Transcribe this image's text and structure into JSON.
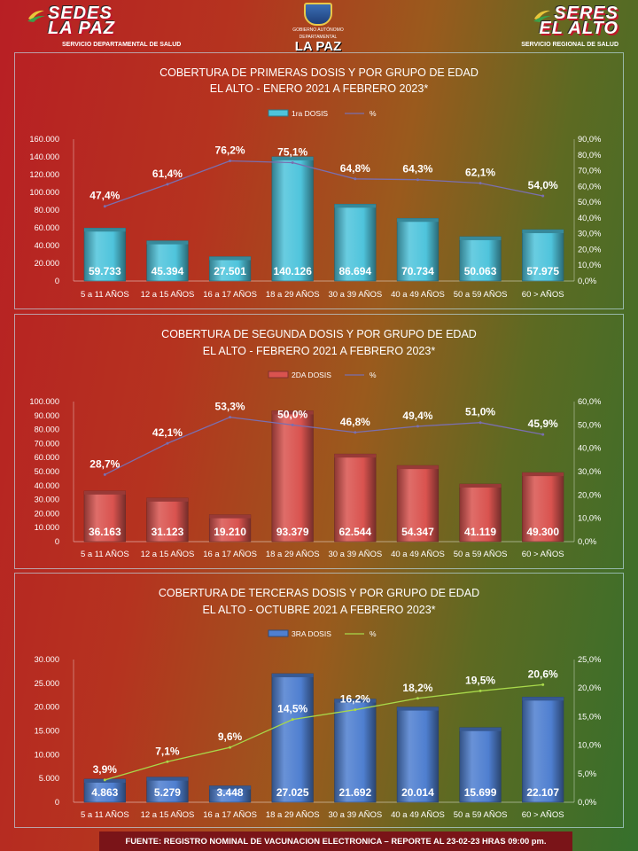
{
  "header": {
    "left_logo": {
      "line1": "SEDES",
      "line2": "LA PAZ",
      "tagline": "SERVICIO DEPARTAMENTAL DE SALUD"
    },
    "center_logo": {
      "line1": "GOBIERNO AUTÓNOMO",
      "line2": "DEPARTAMENTAL",
      "name": "LA PAZ"
    },
    "right_logo": {
      "line1": "SERES",
      "line2": "EL ALTO",
      "tagline": "SERVICIO REGIONAL DE SALUD"
    }
  },
  "footer": {
    "text": "FUENTE: REGISTRO NOMINAL DE VACUNACION ELECTRONICA – REPORTE AL 23-02-23 HRAS 09:00 pm."
  },
  "chart_data": [
    {
      "type": "bar",
      "title": "COBERTURA DE PRIMERAS DOSIS Y POR GRUPO DE EDAD",
      "subtitle": "EL ALTO - ENERO 2021 A FEBRERO 2023*",
      "categories": [
        "5 a 11 AÑOS",
        "12 a 15 AÑOS",
        "16 a 17 AÑOS",
        "18 a 29 AÑOS",
        "30 a 39 AÑOS",
        "40 a 49 AÑOS",
        "50 a 59 AÑOS",
        "60 > AÑOS"
      ],
      "series": [
        {
          "name": "1ra DOSIS",
          "type": "bar",
          "axis": "left",
          "color": "#4fc4dc",
          "values": [
            59733,
            45394,
            27501,
            140126,
            86694,
            70734,
            50063,
            57975
          ],
          "labels": [
            "59.733",
            "45.394",
            "27.501",
            "140.126",
            "86.694",
            "70.734",
            "50.063",
            "57.975"
          ]
        },
        {
          "name": "%",
          "type": "line",
          "axis": "right",
          "color": "#7a6fb0",
          "values": [
            47.4,
            61.4,
            76.2,
            75.1,
            64.8,
            64.3,
            62.1,
            54.0
          ],
          "labels": [
            "47,4%",
            "61,4%",
            "76,2%",
            "75,1%",
            "64,8%",
            "64,3%",
            "62,1%",
            "54,0%"
          ]
        }
      ],
      "left_axis": {
        "min": 0,
        "max": 160000,
        "ticks": [
          "0",
          "20.000",
          "40.000",
          "60.000",
          "80.000",
          "100.000",
          "120.000",
          "140.000",
          "160.000"
        ]
      },
      "right_axis": {
        "min": 0,
        "max": 90,
        "ticks": [
          "0,0%",
          "10,0%",
          "20,0%",
          "30,0%",
          "40,0%",
          "50,0%",
          "60,0%",
          "70,0%",
          "80,0%",
          "90,0%"
        ]
      },
      "legend": "top"
    },
    {
      "type": "bar",
      "title": "COBERTURA DE SEGUNDA DOSIS Y POR GRUPO DE EDAD",
      "subtitle": "EL ALTO - FEBRERO 2021 A FEBRERO 2023*",
      "categories": [
        "5 a 11 AÑOS",
        "12 a 15 AÑOS",
        "16 a 17 AÑOS",
        "18 a 29 AÑOS",
        "30 a 39 AÑOS",
        "40 a 49 AÑOS",
        "50 a 59 AÑOS",
        "60 > AÑOS"
      ],
      "series": [
        {
          "name": "2DA DOSIS",
          "type": "bar",
          "axis": "left",
          "color": "#d9534f",
          "values": [
            36163,
            31123,
            19210,
            93379,
            62544,
            54347,
            41119,
            49300
          ],
          "labels": [
            "36.163",
            "31.123",
            "19.210",
            "93.379",
            "62.544",
            "54.347",
            "41.119",
            "49.300"
          ]
        },
        {
          "name": "%",
          "type": "line",
          "axis": "right",
          "color": "#7a6fb0",
          "values": [
            28.7,
            42.1,
            53.3,
            50.0,
            46.8,
            49.4,
            51.0,
            45.9
          ],
          "labels": [
            "28,7%",
            "42,1%",
            "53,3%",
            "50,0%",
            "46,8%",
            "49,4%",
            "51,0%",
            "45,9%"
          ]
        }
      ],
      "left_axis": {
        "min": 0,
        "max": 100000,
        "ticks": [
          "0",
          "10.000",
          "20.000",
          "30.000",
          "40.000",
          "50.000",
          "60.000",
          "70.000",
          "80.000",
          "90.000",
          "100.000"
        ]
      },
      "right_axis": {
        "min": 0,
        "max": 60,
        "ticks": [
          "0,0%",
          "10,0%",
          "20,0%",
          "30,0%",
          "40,0%",
          "50,0%",
          "60,0%"
        ]
      },
      "legend": "top"
    },
    {
      "type": "bar",
      "title": "COBERTURA DE TERCERAS DOSIS Y POR GRUPO DE EDAD",
      "subtitle": "EL ALTO  - OCTUBRE 2021 A FEBRERO 2023*",
      "categories": [
        "5 a 11 AÑOS",
        "12 a 15 AÑOS",
        "16 a 17 AÑOS",
        "18 a 29 AÑOS",
        "30 a 39 AÑOS",
        "40 a 49 AÑOS",
        "50 a 59 AÑOS",
        "60 > AÑOS"
      ],
      "series": [
        {
          "name": "3RA DOSIS",
          "type": "bar",
          "axis": "left",
          "color": "#4f7fd0",
          "values": [
            4863,
            5279,
            3448,
            27025,
            21692,
            20014,
            15699,
            22107
          ],
          "labels": [
            "4.863",
            "5.279",
            "3.448",
            "27.025",
            "21.692",
            "20.014",
            "15.699",
            "22.107"
          ]
        },
        {
          "name": "%",
          "type": "line",
          "axis": "right",
          "color": "#a8d84a",
          "values": [
            3.9,
            7.1,
            9.6,
            14.5,
            16.2,
            18.2,
            19.5,
            20.6
          ],
          "labels": [
            "3,9%",
            "7,1%",
            "9,6%",
            "14,5%",
            "16,2%",
            "18,2%",
            "19,5%",
            "20,6%"
          ]
        }
      ],
      "left_axis": {
        "min": 0,
        "max": 30000,
        "ticks": [
          "0",
          "5.000",
          "10.000",
          "15.000",
          "20.000",
          "25.000",
          "30.000"
        ]
      },
      "right_axis": {
        "min": 0,
        "max": 25,
        "ticks": [
          "0,0%",
          "5,0%",
          "10,0%",
          "15,0%",
          "20,0%",
          "25,0%"
        ]
      },
      "legend": "top"
    }
  ]
}
